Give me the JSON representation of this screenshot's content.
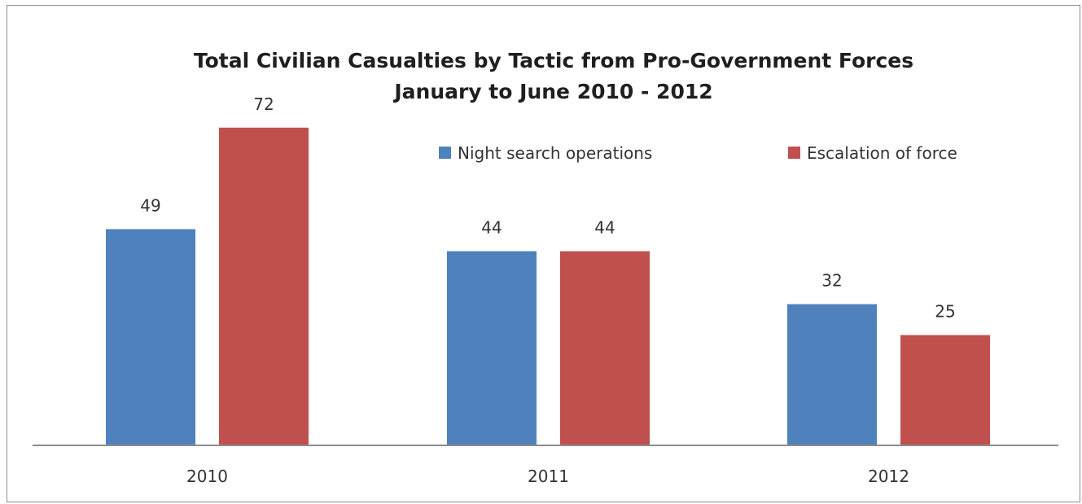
{
  "chart_data": {
    "type": "bar",
    "title": "Total Civilian Casualties by Tactic from Pro-Government Forces",
    "subtitle": "January to June 2010 - 2012",
    "xlabel": "",
    "ylabel": "",
    "categories": [
      "2010",
      "2011",
      "2012"
    ],
    "series": [
      {
        "name": "Night search operations",
        "values": [
          49,
          44,
          32
        ],
        "color": "#4f81bd"
      },
      {
        "name": "Escalation of force",
        "values": [
          72,
          44,
          25
        ],
        "color": "#c0504d"
      }
    ],
    "ylim": [
      0,
      80
    ],
    "grid": false,
    "legend_position": "top-right",
    "data_labels": true
  }
}
